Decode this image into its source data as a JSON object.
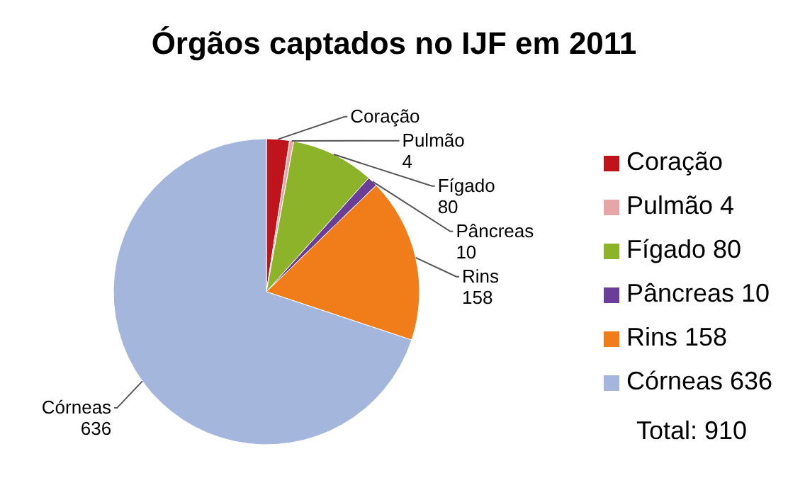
{
  "chart_data": {
    "type": "pie",
    "title": "Órgãos captados no IJF em 2011",
    "categories": [
      "Coração",
      "Pulmão",
      "Fígado",
      "Pâncreas",
      "Rins",
      "Córneas"
    ],
    "values": [
      22,
      4,
      80,
      10,
      158,
      636
    ],
    "value_labels": [
      null,
      "4",
      "80",
      "10",
      "158",
      "636"
    ],
    "colors": [
      "#c0141c",
      "#e6a6a6",
      "#8db32b",
      "#6a3d96",
      "#f07c1a",
      "#a4b6dc"
    ],
    "legend": "right",
    "annotations": [
      "Total: 910"
    ]
  }
}
